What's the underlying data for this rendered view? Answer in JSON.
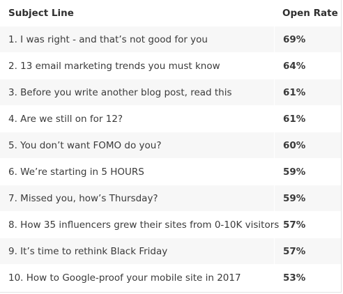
{
  "table": {
    "headers": {
      "subject": "Subject Line",
      "rate": "Open Rate"
    },
    "rows": [
      {
        "subject": "1. I was right - and that’s not good for you",
        "rate": "69%"
      },
      {
        "subject": "2. 13 email marketing trends you must know",
        "rate": "64%"
      },
      {
        "subject": "3. Before you write another blog post, read this",
        "rate": "61%"
      },
      {
        "subject": "4. Are we still on for 12?",
        "rate": "61%"
      },
      {
        "subject": "5. You don’t want FOMO do you?",
        "rate": "60%"
      },
      {
        "subject": "6. We’re starting in 5 HOURS",
        "rate": "59%"
      },
      {
        "subject": "7. Missed you, how’s Thursday?",
        "rate": "59%"
      },
      {
        "subject": "8. How 35 influencers grew their sites from 0-10K visitors",
        "rate": "57%"
      },
      {
        "subject": "9. It’s time to rethink Black Friday",
        "rate": "57%"
      },
      {
        "subject": "10. How to Google-proof your mobile site in 2017",
        "rate": "53%"
      }
    ]
  }
}
